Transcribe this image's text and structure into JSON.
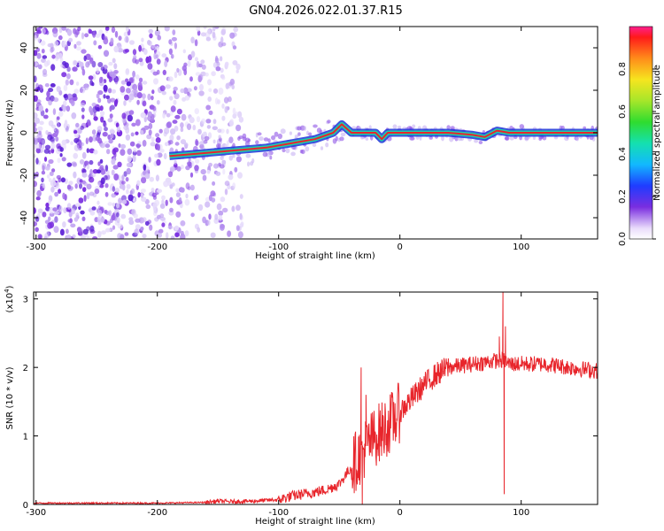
{
  "title": "GN04.2026.022.01.37.R15",
  "colors": {
    "signal": "#e8252b",
    "axis": "#000000",
    "background": "#ffffff",
    "spectrogram_noise": "#7a2ee0",
    "spectrogram_light": "#d9c9f7",
    "spectrogram_peak": "#e8252b"
  },
  "chart_data": [
    {
      "type": "heatmap",
      "name": "spectrogram",
      "xlabel": "Height of straight line (km)",
      "ylabel": "Frequency (Hz)",
      "xlim": [
        -302,
        163
      ],
      "ylim": [
        -50,
        50
      ],
      "x_ticks": [
        -300,
        -200,
        -100,
        0,
        100
      ],
      "y_ticks": [
        -40,
        -20,
        0,
        20,
        40
      ],
      "ridge_line": {
        "x": [
          -190,
          -170,
          -150,
          -130,
          -110,
          -90,
          -70,
          -55,
          -48,
          -40,
          -30,
          -20,
          -15,
          -10,
          0,
          20,
          40,
          60,
          70,
          80,
          90,
          100,
          120,
          140,
          163
        ],
        "y": [
          -11,
          -10,
          -9,
          -8,
          -7,
          -5,
          -3,
          0,
          4,
          0,
          0,
          0,
          -3,
          0,
          0,
          0,
          0,
          -1,
          -2,
          1,
          0,
          0,
          0,
          0,
          0
        ]
      },
      "noise_region_km": [
        -302,
        -140
      ],
      "colorbar": {
        "label": "Normalized spectral amplitude",
        "range": [
          0,
          1
        ],
        "ticks": [
          "0.0",
          "0.2",
          "0.4",
          "0.6",
          "0.8"
        ]
      }
    },
    {
      "type": "line",
      "name": "snr",
      "xlabel": "Height of straight line (km)",
      "ylabel": "SNR (10 * v/v)",
      "scale_label": "(x10",
      "scale_exp": "4",
      "scale_close": ")",
      "xlim": [
        -302,
        163
      ],
      "ylim": [
        0,
        3.1
      ],
      "x_ticks": [
        -300,
        -200,
        -100,
        0,
        100
      ],
      "y_ticks": [
        0,
        1,
        2,
        3
      ],
      "envelope": {
        "x": [
          -302,
          -200,
          -160,
          -150,
          -140,
          -120,
          -100,
          -90,
          -70,
          -60,
          -50,
          -40,
          -30,
          -20,
          -10,
          0,
          10,
          20,
          30,
          40,
          60,
          80,
          86,
          90,
          100,
          120,
          140,
          163
        ],
        "y": [
          0.02,
          0.02,
          0.03,
          0.05,
          0.04,
          0.05,
          0.07,
          0.12,
          0.18,
          0.22,
          0.3,
          0.55,
          0.8,
          1.0,
          1.15,
          1.35,
          1.55,
          1.75,
          1.9,
          2.0,
          2.05,
          2.1,
          2.1,
          2.05,
          2.05,
          2.05,
          2.0,
          1.95
        ]
      },
      "spikes": [
        {
          "x": -32,
          "y": 2.0
        },
        {
          "x": -31,
          "y": 0.0
        },
        {
          "x": -28,
          "y": 1.6
        },
        {
          "x": 82,
          "y": 2.45
        },
        {
          "x": 85,
          "y": 3.1
        },
        {
          "x": 86,
          "y": 0.15
        },
        {
          "x": 87,
          "y": 2.6
        }
      ]
    }
  ]
}
